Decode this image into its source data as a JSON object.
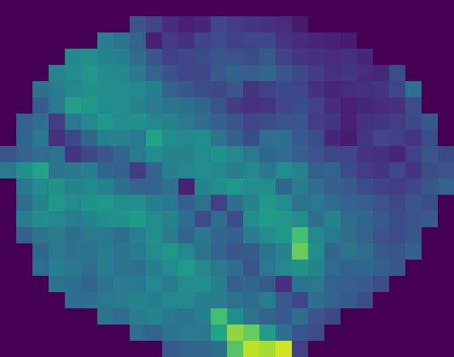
{
  "chart_data": {
    "type": "heatmap",
    "colormap": "viridis",
    "value_range": [
      0,
      1
    ],
    "grid": false,
    "background_color": "#440154",
    "rows": 22,
    "cols": 28,
    "values": [
      [
        0,
        0,
        0,
        0,
        0,
        0,
        0,
        0,
        0,
        0,
        0,
        0,
        0,
        0,
        0,
        0,
        0,
        0,
        0,
        0,
        0,
        0,
        0,
        0,
        0,
        0,
        0,
        0
      ],
      [
        0,
        0,
        0,
        0,
        0,
        0,
        0,
        0,
        0.34,
        0.26,
        0.16,
        0.12,
        0.14,
        0.26,
        0.22,
        0.2,
        0.18,
        0.16,
        0.1,
        0,
        0,
        0,
        0,
        0,
        0,
        0,
        0,
        0
      ],
      [
        0,
        0,
        0,
        0,
        0,
        0,
        0.52,
        0.48,
        0.4,
        0.12,
        0.22,
        0.18,
        0.26,
        0.3,
        0.24,
        0.26,
        0.28,
        0.2,
        0.16,
        0.14,
        0.12,
        0.1,
        0,
        0,
        0,
        0,
        0,
        0
      ],
      [
        0,
        0,
        0,
        0,
        0.58,
        0.62,
        0.56,
        0.54,
        0.44,
        0.34,
        0.24,
        0.26,
        0.3,
        0.34,
        0.32,
        0.3,
        0.36,
        0.24,
        0.2,
        0.18,
        0.16,
        0.18,
        0.14,
        0,
        0,
        0,
        0,
        0
      ],
      [
        0,
        0,
        0,
        0.56,
        0.6,
        0.66,
        0.6,
        0.58,
        0.5,
        0.4,
        0.32,
        0.26,
        0.28,
        0.36,
        0.4,
        0.38,
        0.42,
        0.34,
        0.28,
        0.22,
        0.18,
        0.2,
        0.16,
        0.14,
        0.3,
        0,
        0,
        0
      ],
      [
        0,
        0,
        0.46,
        0.52,
        0.58,
        0.64,
        0.62,
        0.6,
        0.58,
        0.54,
        0.4,
        0.34,
        0.3,
        0.28,
        0.34,
        0.2,
        0.24,
        0.28,
        0.26,
        0.18,
        0.14,
        0.16,
        0.18,
        0.2,
        0.26,
        0.46,
        0,
        0
      ],
      [
        0,
        0,
        0.36,
        0.5,
        0.7,
        0.66,
        0.6,
        0.62,
        0.56,
        0.52,
        0.48,
        0.46,
        0.42,
        0.32,
        0.22,
        0.18,
        0.2,
        0.26,
        0.3,
        0.24,
        0.16,
        0.12,
        0.14,
        0.16,
        0.18,
        0.3,
        0,
        0
      ],
      [
        0,
        0.4,
        0.44,
        0.22,
        0.5,
        0.58,
        0.66,
        0.6,
        0.64,
        0.58,
        0.56,
        0.5,
        0.44,
        0.38,
        0.34,
        0.26,
        0.3,
        0.32,
        0.34,
        0.22,
        0.2,
        0.12,
        0.18,
        0.2,
        0.22,
        0.28,
        0.34,
        0
      ],
      [
        0,
        0.42,
        0.5,
        0.18,
        0.28,
        0.42,
        0.54,
        0.56,
        0.5,
        0.72,
        0.6,
        0.58,
        0.62,
        0.48,
        0.38,
        0.3,
        0.44,
        0.46,
        0.36,
        0.3,
        0.14,
        0.1,
        0.2,
        0.26,
        0.24,
        0.2,
        0.3,
        0
      ],
      [
        0.34,
        0.4,
        0.44,
        0.48,
        0.2,
        0.28,
        0.34,
        0.42,
        0.52,
        0.62,
        0.56,
        0.56,
        0.6,
        0.64,
        0.58,
        0.5,
        0.42,
        0.44,
        0.38,
        0.32,
        0.28,
        0.26,
        0.2,
        0.18,
        0.14,
        0.24,
        0.34,
        0.28
      ],
      [
        0.5,
        0.64,
        0.72,
        0.48,
        0.5,
        0.54,
        0.42,
        0.38,
        0.22,
        0.4,
        0.54,
        0.58,
        0.62,
        0.58,
        0.52,
        0.58,
        0.5,
        0.6,
        0.56,
        0.38,
        0.4,
        0.3,
        0.22,
        0.2,
        0.26,
        0.2,
        0.3,
        0.32
      ],
      [
        0,
        0.5,
        0.6,
        0.64,
        0.56,
        0.58,
        0.56,
        0.46,
        0.4,
        0.4,
        0.46,
        0.12,
        0.56,
        0.62,
        0.66,
        0.62,
        0.6,
        0.42,
        0.52,
        0.44,
        0.38,
        0.36,
        0.3,
        0.24,
        0.22,
        0.26,
        0.34,
        0.4
      ],
      [
        0,
        0.44,
        0.56,
        0.66,
        0.6,
        0.64,
        0.66,
        0.62,
        0.62,
        0.54,
        0.5,
        0.38,
        0.46,
        0.24,
        0.46,
        0.56,
        0.66,
        0.6,
        0.48,
        0.5,
        0.44,
        0.4,
        0.38,
        0.32,
        0.28,
        0.34,
        0.3,
        0
      ],
      [
        0,
        0.54,
        0.62,
        0.58,
        0.52,
        0.56,
        0.62,
        0.64,
        0.68,
        0.6,
        0.56,
        0.46,
        0.3,
        0.44,
        0.3,
        0.62,
        0.68,
        0.66,
        0.62,
        0.46,
        0.56,
        0.44,
        0.42,
        0.36,
        0.3,
        0.32,
        0.36,
        0
      ],
      [
        0,
        0.38,
        0.48,
        0.52,
        0.46,
        0.5,
        0.5,
        0.46,
        0.54,
        0.62,
        0.52,
        0.42,
        0.5,
        0.42,
        0.38,
        0.52,
        0.6,
        0.66,
        0.82,
        0.58,
        0.5,
        0.46,
        0.4,
        0.32,
        0.3,
        0.34,
        0,
        0
      ],
      [
        0,
        0,
        0.42,
        0.5,
        0.46,
        0.48,
        0.52,
        0.48,
        0.52,
        0.6,
        0.66,
        0.58,
        0.48,
        0.4,
        0.34,
        0.36,
        0.48,
        0.56,
        0.86,
        0.62,
        0.42,
        0.48,
        0.44,
        0.36,
        0.34,
        0.38,
        0,
        0
      ],
      [
        0,
        0,
        0.44,
        0.54,
        0.5,
        0.44,
        0.52,
        0.48,
        0.46,
        0.54,
        0.6,
        0.68,
        0.58,
        0.5,
        0.44,
        0.32,
        0.5,
        0.58,
        0.64,
        0.56,
        0.44,
        0.4,
        0.42,
        0.38,
        0.34,
        0,
        0,
        0
      ],
      [
        0,
        0,
        0,
        0.48,
        0.46,
        0.42,
        0.48,
        0.52,
        0.5,
        0.58,
        0.52,
        0.6,
        0.62,
        0.54,
        0.38,
        0.42,
        0.36,
        0.18,
        0.48,
        0.5,
        0.4,
        0.38,
        0.36,
        0.3,
        0,
        0,
        0,
        0
      ],
      [
        0,
        0,
        0,
        0,
        0.44,
        0.46,
        0.5,
        0.52,
        0.56,
        0.54,
        0.58,
        0.58,
        0.54,
        0.52,
        0.48,
        0.44,
        0.52,
        0.36,
        0.26,
        0.46,
        0.4,
        0.36,
        0.3,
        0,
        0,
        0,
        0,
        0
      ],
      [
        0,
        0,
        0,
        0,
        0,
        0,
        0.48,
        0.44,
        0.52,
        0.56,
        0.5,
        0.48,
        0.54,
        0.82,
        0.62,
        0.48,
        0.4,
        0.36,
        0.44,
        0.32,
        0.28,
        0,
        0,
        0,
        0,
        0,
        0,
        0
      ],
      [
        0,
        0,
        0,
        0,
        0,
        0,
        0,
        0,
        0.44,
        0.4,
        0.48,
        0.5,
        0.5,
        0.72,
        0.9,
        0.86,
        0.68,
        0.46,
        0.34,
        0.3,
        0,
        0,
        0,
        0,
        0,
        0,
        0,
        0
      ],
      [
        0,
        0,
        0,
        0,
        0,
        0,
        0,
        0,
        0,
        0,
        0.36,
        0.4,
        0.42,
        0.46,
        0.84,
        0.94,
        0.92,
        0.96,
        0.24,
        0,
        0,
        0,
        0,
        0,
        0,
        0,
        0,
        0
      ]
    ]
  }
}
